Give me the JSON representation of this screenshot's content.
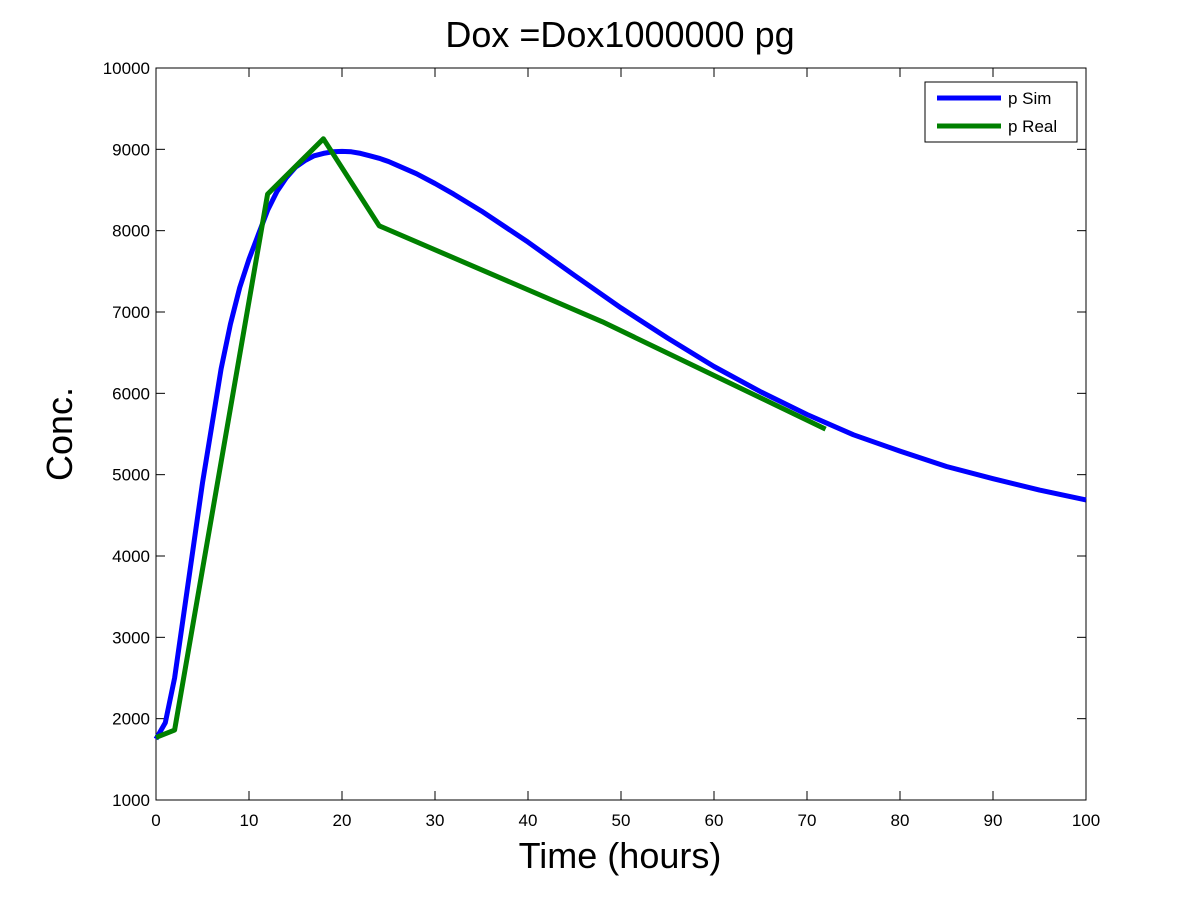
{
  "chart_data": {
    "type": "line",
    "title": "Dox =Dox1000000 pg",
    "xlabel": "Time (hours)",
    "ylabel": "Conc.",
    "xlim": [
      0,
      100
    ],
    "ylim": [
      1000,
      10000
    ],
    "xticks": [
      0,
      10,
      20,
      30,
      40,
      50,
      60,
      70,
      80,
      90,
      100
    ],
    "yticks": [
      1000,
      2000,
      3000,
      4000,
      5000,
      6000,
      7000,
      8000,
      9000,
      10000
    ],
    "grid": false,
    "legend_position": "top-right",
    "series": [
      {
        "name": "p Sim",
        "color": "#0000ff",
        "x": [
          0,
          1,
          2,
          3,
          4,
          5,
          6,
          7,
          8,
          9,
          10,
          11,
          12,
          13,
          14,
          15,
          16,
          17,
          18,
          19,
          20,
          21,
          22,
          23,
          24,
          25,
          26,
          28,
          30,
          32,
          35,
          40,
          45,
          50,
          55,
          60,
          65,
          70,
          75,
          80,
          85,
          90,
          95,
          100
        ],
        "y": [
          1750,
          1950,
          2500,
          3300,
          4100,
          4900,
          5600,
          6300,
          6850,
          7300,
          7650,
          7950,
          8250,
          8480,
          8650,
          8780,
          8860,
          8920,
          8950,
          8970,
          8975,
          8970,
          8950,
          8920,
          8890,
          8850,
          8800,
          8700,
          8580,
          8450,
          8240,
          7860,
          7450,
          7050,
          6680,
          6330,
          6020,
          5740,
          5490,
          5290,
          5100,
          4950,
          4810,
          4690
        ]
      },
      {
        "name": "p Real",
        "color": "#008000",
        "x": [
          0,
          2,
          12,
          18,
          24,
          48,
          72
        ],
        "y": [
          1770,
          1860,
          8450,
          9130,
          8060,
          6880,
          5560
        ]
      }
    ]
  }
}
